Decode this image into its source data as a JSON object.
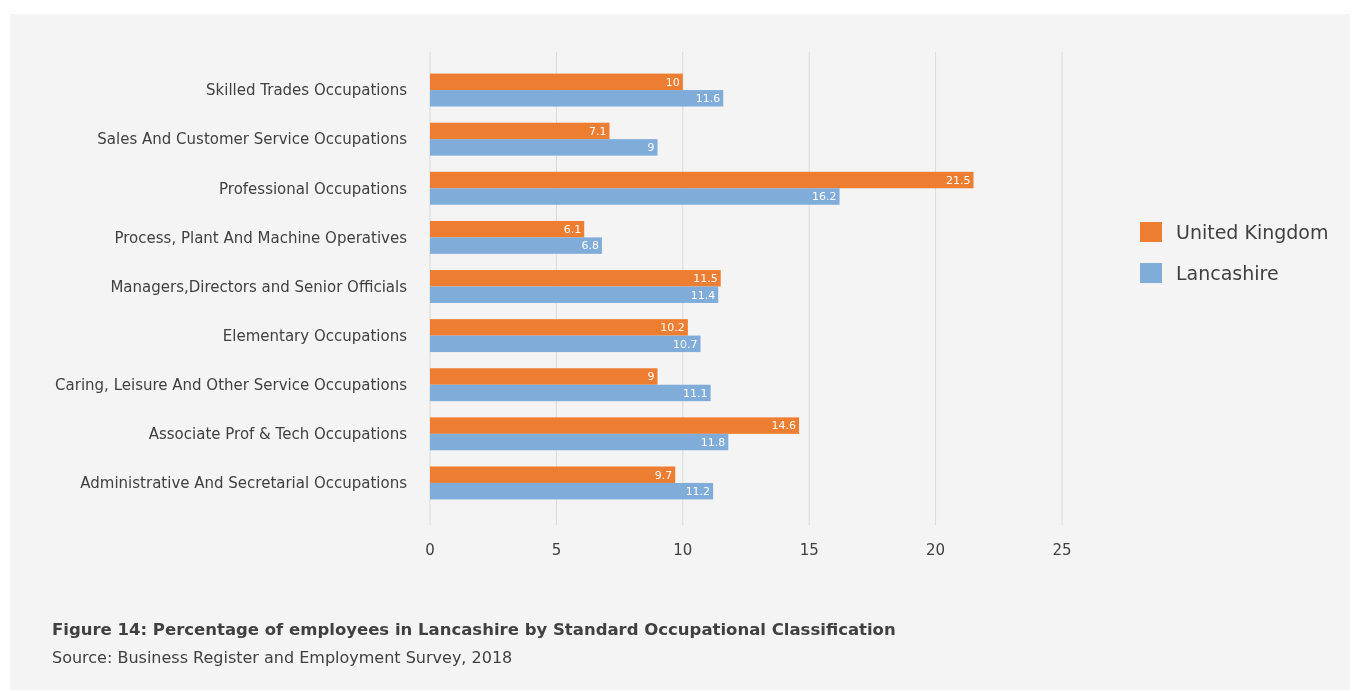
{
  "chart_data": {
    "type": "bar",
    "orientation": "horizontal",
    "title": "Figure 14: Percentage of employees in Lancashire by Standard Occupational Classification",
    "annotations": [
      "Source: Business Register and Employment Survey, 2018"
    ],
    "categories": [
      "Skilled Trades Occupations",
      "Sales And Customer Service Occupations",
      "Professional Occupations",
      "Process, Plant And Machine Operatives",
      "Managers,Directors and Senior Officials",
      "Elementary Occupations",
      "Caring, Leisure And Other Service Occupations",
      "Associate Prof & Tech Occupations",
      "Administrative And Secretarial Occupations"
    ],
    "series": [
      {
        "name": "United Kingdom",
        "color": "#ed7d31",
        "values": [
          10,
          7.1,
          21.5,
          6.1,
          11.5,
          10.2,
          9,
          14.6,
          9.7
        ]
      },
      {
        "name": "Lancashire",
        "color": "#7facd8",
        "values": [
          11.6,
          9,
          16.2,
          6.8,
          11.4,
          10.7,
          11.1,
          11.8,
          11.2
        ]
      }
    ],
    "xlim": [
      0,
      25
    ],
    "xticks": [
      0,
      5,
      10,
      15,
      20,
      25
    ],
    "grid": "x",
    "legend": "right",
    "data_labels": true
  }
}
